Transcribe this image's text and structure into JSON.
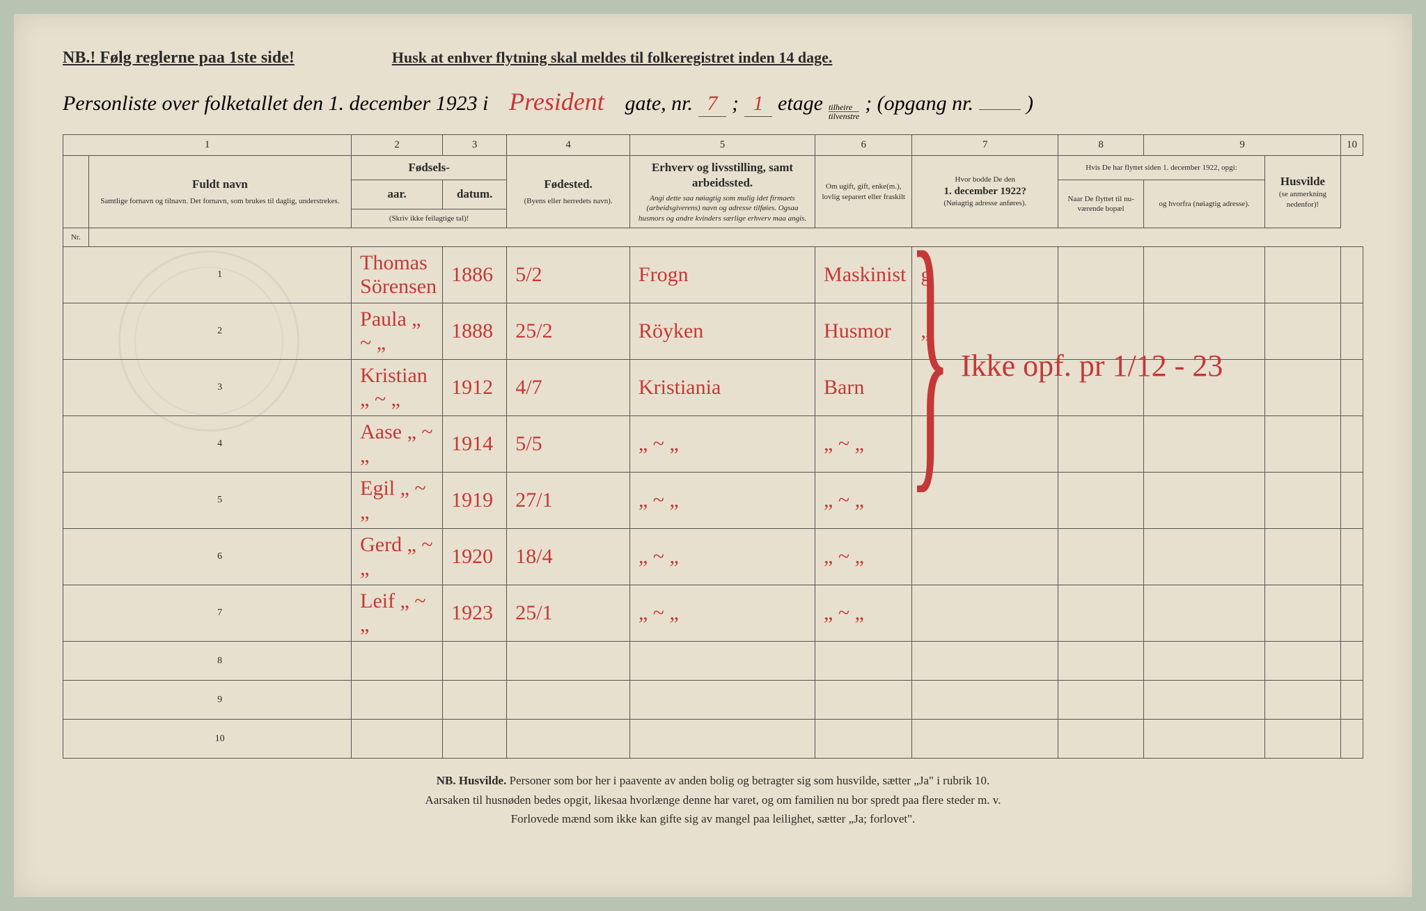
{
  "top": {
    "nb": "NB.! Følg reglerne paa 1ste side!",
    "husk": "Husk at enhver flytning skal meldes til folkeregistret inden 14 dage."
  },
  "title": {
    "prefix": "Personliste over folketallet den 1. december 1923 i",
    "street": "President",
    "gate_label": "gate, nr.",
    "gate_nr": "7",
    "semi": ";",
    "etage_nr": "1",
    "etage_label": "etage",
    "tilheire": "tilheire",
    "tilvenstre": "tilvenstre",
    "opgang": "; (opgang nr.",
    "close": ")"
  },
  "colnums": [
    "1",
    "2",
    "3",
    "4",
    "5",
    "6",
    "7",
    "8",
    "9",
    "10"
  ],
  "headers": {
    "nr": "Nr.",
    "fuldt_navn": "Fuldt navn",
    "fuldt_sub": "Samtlige fornavn og tilnavn. Det fornavn, som brukes til daglig, understrekes.",
    "fodsels": "Fødsels-",
    "aar": "aar.",
    "datum": "datum.",
    "aar_sub": "(Skriv ikke feilagtige tal)!",
    "fodested": "Fødested.",
    "fodested_sub": "(Byens eller herredets navn).",
    "erhverv": "Erhverv og livsstilling, samt arbeidssted.",
    "erhverv_sub": "Angi dette saa nøiagtig som mulig idet firmaets (arbeidsgiverens) navn og adresse tilføies. Ogsaa husmors og andre kvinders særlige erhverv maa angis.",
    "marital": "Om ugift, gift, enke(m.), lovlig separert eller fraskilt",
    "addr1922": "Hvor bodde De den",
    "addr1922b": "1. december 1922?",
    "addr1922_sub": "(Nøiagtig adresse anføres).",
    "flyttet_hdr": "Hvis De har flyttet siden 1. december 1922, opgi:",
    "naar": "Naar De flyttet til nu-værende bopæl",
    "hvorfra": "og hvorfra (nøiagtig adresse).",
    "husvilde": "Husvilde",
    "husvilde_sub": "(se anmerkning nedenfor)!"
  },
  "rows": [
    {
      "n": "1",
      "name": "Thomas Sörensen",
      "year": "1886",
      "date": "5/2",
      "place": "Frogn",
      "occ": "Maskinist",
      "marital": "g"
    },
    {
      "n": "2",
      "name": "Paula    „    ~    „",
      "year": "1888",
      "date": "25/2",
      "place": "Röyken",
      "occ": "Husmor",
      "marital": "„"
    },
    {
      "n": "3",
      "name": "Kristian  „   ~   „",
      "year": "1912",
      "date": "4/7",
      "place": "Kristiania",
      "occ": "Barn",
      "marital": ""
    },
    {
      "n": "4",
      "name": "Aase     „    ~    „",
      "year": "1914",
      "date": "5/5",
      "place": "„   ~   „",
      "occ": "„ ~ „",
      "marital": ""
    },
    {
      "n": "5",
      "name": "Egil      „    ~    „",
      "year": "1919",
      "date": "27/1",
      "place": "„   ~   „",
      "occ": "„ ~ „",
      "marital": ""
    },
    {
      "n": "6",
      "name": "Gerd     „    ~    „",
      "year": "1920",
      "date": "18/4",
      "place": "„   ~   „",
      "occ": "„ ~ „",
      "marital": ""
    },
    {
      "n": "7",
      "name": "Leif      „    ~    „",
      "year": "1923",
      "date": "25/1",
      "place": "„   ~   „",
      "occ": "„ ~ „",
      "marital": ""
    },
    {
      "n": "8",
      "name": "",
      "year": "",
      "date": "",
      "place": "",
      "occ": "",
      "marital": ""
    },
    {
      "n": "9",
      "name": "",
      "year": "",
      "date": "",
      "place": "",
      "occ": "",
      "marital": ""
    },
    {
      "n": "10",
      "name": "",
      "year": "",
      "date": "",
      "place": "",
      "occ": "",
      "marital": ""
    }
  ],
  "big_note": "Ikke opf. pr 1/12 - 23",
  "footer": {
    "l1a": "NB.  Husvilde.",
    "l1b": "Personer som bor her i paavente av anden bolig og betragter sig som husvilde, sætter „Ja\" i rubrik 10.",
    "l2": "Aarsaken til husnøden bedes opgit, likesaa hvorlænge denne har varet, og om familien nu bor spredt paa flere steder m. v.",
    "l3a": "Forlovede mænd som ikke kan gifte sig av mangel paa leilighet, sætter „Ja; forlovet\"."
  }
}
